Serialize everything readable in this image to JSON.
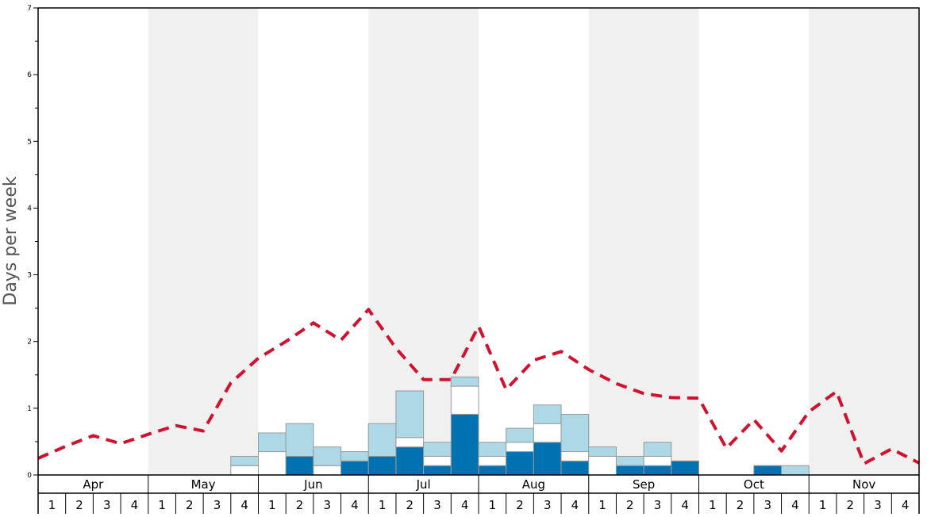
{
  "chart_data": {
    "type": "bar",
    "ylabel": "Days per week",
    "ylim": [
      0,
      7
    ],
    "yticks": [
      0,
      1,
      2,
      3,
      4,
      5,
      6,
      7
    ],
    "months": [
      "Apr",
      "May",
      "Jun",
      "Jul",
      "Aug",
      "Sep",
      "Oct",
      "Nov"
    ],
    "week_labels": [
      "1",
      "2",
      "3",
      "4",
      "1",
      "2",
      "3",
      "4",
      "1",
      "2",
      "3",
      "4",
      "1",
      "2",
      "3",
      "4",
      "1",
      "2",
      "3",
      "4",
      "1",
      "2",
      "3",
      "4",
      "1",
      "2",
      "3",
      "4",
      "1",
      "2",
      "3",
      "4"
    ],
    "grid": false,
    "colors": {
      "dark": "#0072b2",
      "white": "#ffffff",
      "light": "#add8e6",
      "line": "#d0122e",
      "band": "#f0f0f0",
      "bar_edge": "#999999"
    },
    "series": [
      {
        "color": "dark",
        "values": [
          0,
          0,
          0,
          0,
          0,
          0,
          0,
          0,
          0,
          0.28,
          0,
          0.21,
          0.28,
          0.42,
          0.14,
          0.91,
          0.14,
          0.35,
          0.49,
          0.21,
          0,
          0.14,
          0.14,
          0.21,
          0,
          0,
          0.14,
          0,
          0,
          0,
          0,
          0
        ]
      },
      {
        "color": "white",
        "values": [
          0,
          0,
          0,
          0,
          0,
          0,
          0,
          0.14,
          0.35,
          0,
          0.14,
          0,
          0,
          0.14,
          0.14,
          0.42,
          0.14,
          0.14,
          0.28,
          0.14,
          0.28,
          0,
          0.14,
          0,
          0,
          0,
          0,
          0,
          0,
          0,
          0,
          0
        ]
      },
      {
        "color": "light",
        "values": [
          0,
          0,
          0,
          0,
          0,
          0,
          0,
          0.14,
          0.28,
          0.49,
          0.28,
          0.14,
          0.49,
          0.7,
          0.21,
          0.14,
          0.21,
          0.21,
          0.28,
          0.56,
          0.14,
          0.14,
          0.21,
          0,
          0,
          0,
          0,
          0.14,
          0,
          0,
          0,
          0
        ]
      }
    ],
    "line": {
      "style": "dashed",
      "x": [
        0,
        1,
        2,
        3,
        4,
        5,
        6,
        7,
        8,
        9,
        10,
        11,
        12,
        13,
        14,
        15,
        16,
        17,
        18,
        19,
        20,
        21,
        22,
        23,
        24,
        25,
        26,
        27,
        28,
        29,
        30,
        31,
        32
      ],
      "values": [
        0.25,
        0.43,
        0.59,
        0.47,
        0.61,
        0.74,
        0.66,
        1.38,
        1.75,
        2.0,
        2.28,
        2.02,
        2.48,
        1.9,
        1.43,
        1.43,
        2.23,
        1.28,
        1.72,
        1.85,
        1.58,
        1.37,
        1.22,
        1.16,
        1.15,
        0.4,
        0.83,
        0.36,
        0.95,
        1.25,
        0.17,
        0.39,
        0.18
      ]
    }
  }
}
